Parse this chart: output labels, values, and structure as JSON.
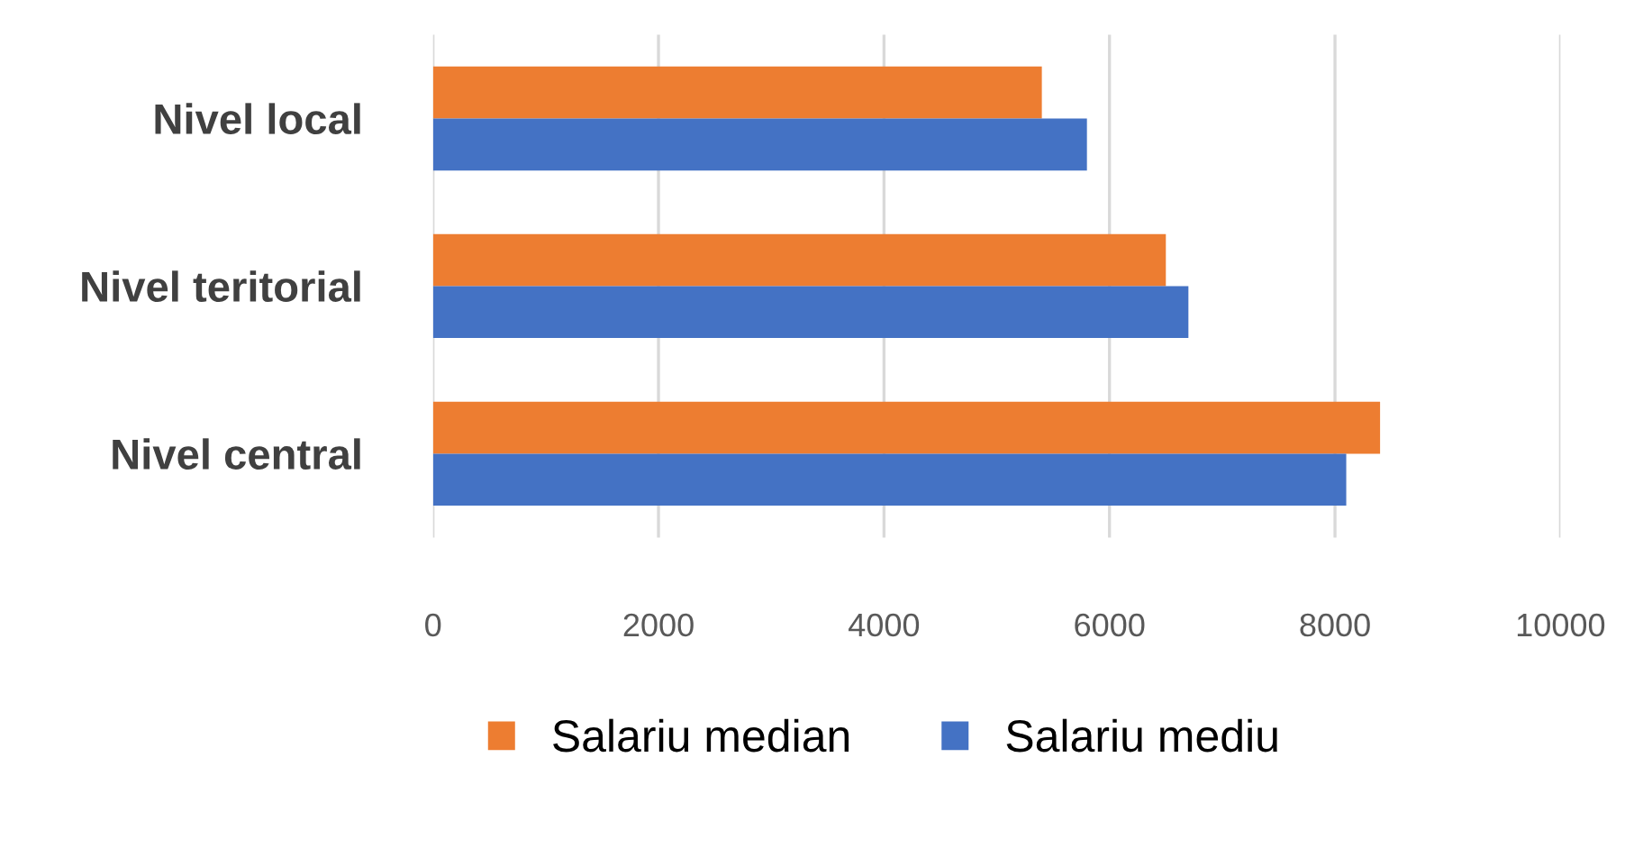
{
  "chart_data": {
    "type": "bar",
    "orientation": "horizontal",
    "categories": [
      "Nivel local",
      "Nivel teritorial",
      "Nivel central"
    ],
    "series": [
      {
        "name": "Salariu median",
        "color": "#ed7d31",
        "values": [
          5400,
          6500,
          8400
        ]
      },
      {
        "name": "Salariu mediu",
        "color": "#4472c4",
        "values": [
          5800,
          6700,
          8100
        ]
      }
    ],
    "xlim": [
      0,
      10000
    ],
    "xticks": [
      0,
      2000,
      4000,
      6000,
      8000,
      10000
    ],
    "grid": "x",
    "legend": "bottom"
  }
}
